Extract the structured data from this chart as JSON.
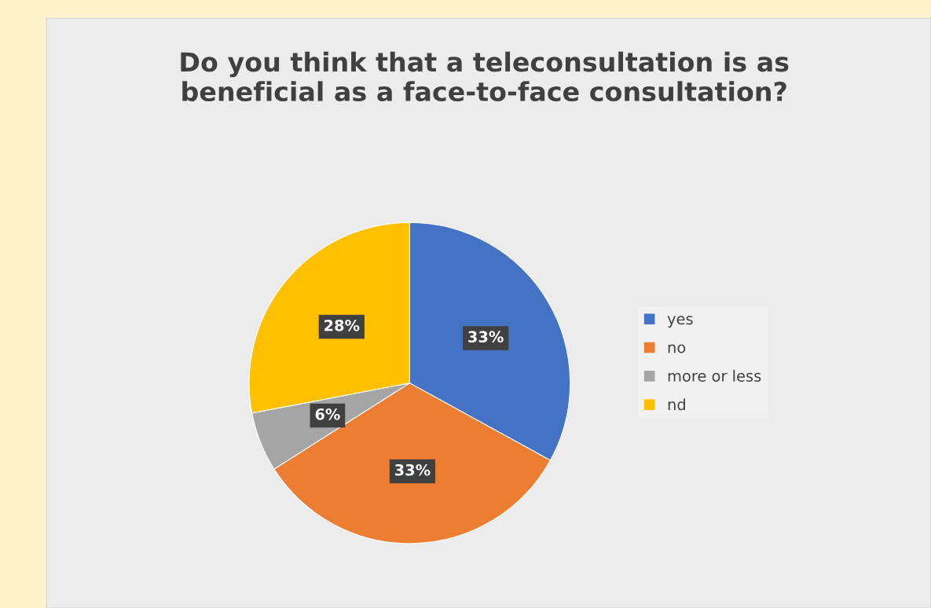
{
  "chart_data": {
    "type": "pie",
    "title": "Do you think that a teleconsultation is as\nbeneficial as a face-to-face consultation?",
    "categories": [
      "yes",
      "no",
      "more or less",
      "nd"
    ],
    "values": [
      33,
      33,
      6,
      28
    ],
    "colors": [
      "#4472c4",
      "#ed7d31",
      "#a5a5a5",
      "#ffc000"
    ],
    "value_labels": [
      "33%",
      "33%",
      "6%",
      "28%"
    ],
    "legend": "right"
  }
}
